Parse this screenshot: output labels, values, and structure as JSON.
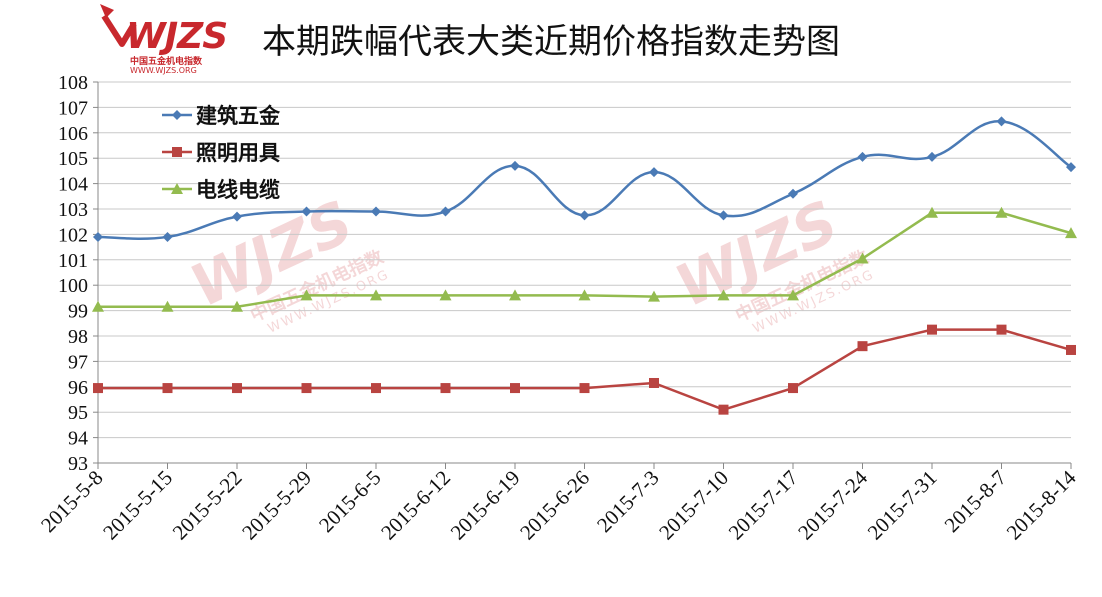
{
  "logo": {
    "mark": "WJZS",
    "cn": "中国五金机电指数",
    "url": "WWW.WJZS.ORG"
  },
  "chart_data": {
    "type": "line",
    "title": "本期跌幅代表大类近期价格指数走势图",
    "categories": [
      "2015-5-8",
      "2015-5-15",
      "2015-5-22",
      "2015-5-29",
      "2015-6-5",
      "2015-6-12",
      "2015-6-19",
      "2015-6-26",
      "2015-7-3",
      "2015-7-10",
      "2015-7-17",
      "2015-7-24",
      "2015-7-31",
      "2015-8-7",
      "2015-8-14"
    ],
    "ylim": [
      93,
      108
    ],
    "yticks": [
      93,
      94,
      95,
      96,
      97,
      98,
      99,
      100,
      101,
      102,
      103,
      104,
      105,
      106,
      107,
      108
    ],
    "grid": true,
    "legend": "top-left",
    "series": [
      {
        "name": "建筑五金",
        "color": "#4a7ab5",
        "marker": "diamond",
        "smooth": true,
        "values": [
          101.9,
          101.9,
          102.7,
          102.9,
          102.9,
          102.9,
          104.7,
          102.75,
          104.45,
          102.75,
          103.6,
          105.05,
          105.05,
          106.45,
          104.65
        ]
      },
      {
        "name": "照明用具",
        "color": "#b94441",
        "marker": "square",
        "smooth": false,
        "values": [
          95.95,
          95.95,
          95.95,
          95.95,
          95.95,
          95.95,
          95.95,
          95.95,
          96.15,
          95.1,
          95.95,
          97.6,
          98.25,
          98.25,
          97.45
        ]
      },
      {
        "name": "电线电缆",
        "color": "#93bb4f",
        "marker": "triangle",
        "smooth": false,
        "values": [
          99.15,
          99.15,
          99.15,
          99.6,
          99.6,
          99.6,
          99.6,
          99.6,
          99.55,
          99.6,
          99.6,
          101.05,
          102.85,
          102.85,
          102.05
        ]
      }
    ]
  }
}
